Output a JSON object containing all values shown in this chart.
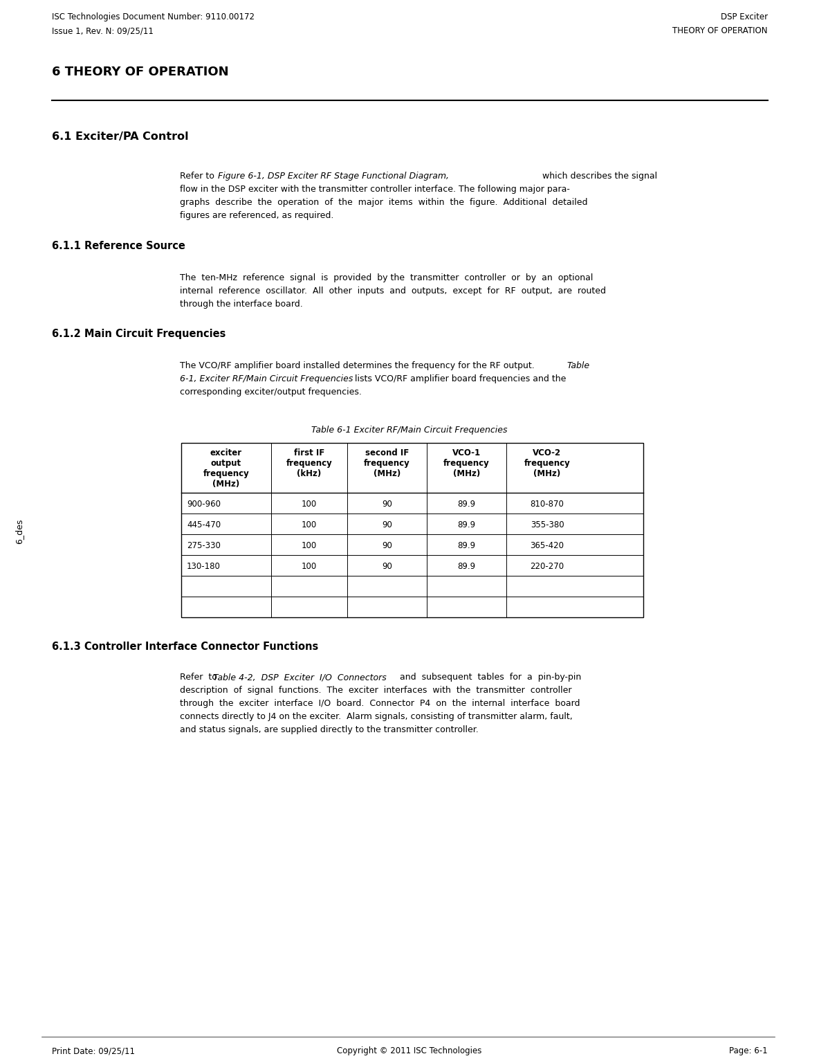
{
  "header_left_line1": "ISC Technologies Document Number: 9110.00172",
  "header_left_line2": "Issue 1, Rev. N: 09/25/11",
  "header_right_line1": "DSP Exciter",
  "header_right_line2": "THEORY OF OPERATION",
  "chapter_title": "6 THEORY OF OPERATION",
  "section_61": "6.1 Exciter/PA Control",
  "section_611": "6.1.1 Reference Source",
  "section_612": "6.1.2 Main Circuit Frequencies",
  "table_title": "Table 6-1 Exciter RF/Main Circuit Frequencies",
  "table_headers": [
    "exciter\noutput\nfrequency\n(MHz)",
    "first IF\nfrequency\n(kHz)",
    "second IF\nfrequency\n(MHz)",
    "VCO-1\nfrequency\n(MHz)",
    "VCO-2\nfrequency\n(MHz)"
  ],
  "table_rows": [
    [
      "900-960",
      "100",
      "90",
      "89.9",
      "810-870"
    ],
    [
      "445-470",
      "100",
      "90",
      "89.9",
      "355-380"
    ],
    [
      "275-330",
      "100",
      "90",
      "89.9",
      "365-420"
    ],
    [
      "130-180",
      "100",
      "90",
      "89.9",
      "220-270"
    ],
    [
      "",
      "",
      "",
      "",
      ""
    ],
    [
      "",
      "",
      "",
      "",
      ""
    ]
  ],
  "section_613": "6.1.3 Controller Interface Connector Functions",
  "footer_left": "Print Date: 09/25/11",
  "footer_center": "Copyright © 2011 ISC Technologies",
  "footer_right": "Page: 6-1",
  "sidebar_text": "6_des",
  "bg_color": "#ffffff",
  "text_color": "#000000"
}
